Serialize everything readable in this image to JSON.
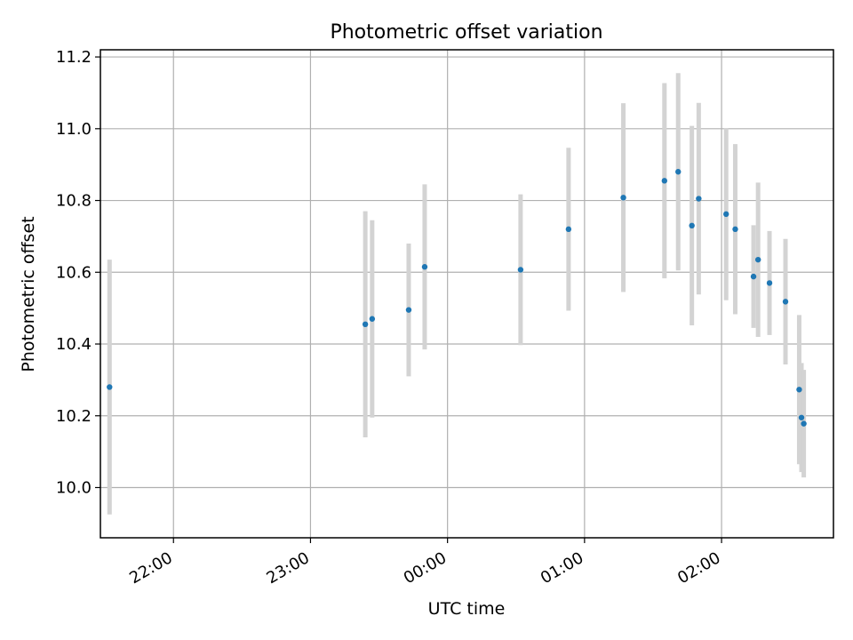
{
  "chart_data": {
    "type": "scatter",
    "title": "Photometric offset variation",
    "xlabel": "UTC time",
    "ylabel": "Photometric offset",
    "grid": true,
    "legend": "none",
    "xaxis_unit": "clock time (HH:MM, UTC)",
    "xlim": [
      "21:28",
      "02:49"
    ],
    "ylim": [
      9.86,
      11.22
    ],
    "xticks": [
      "22:00",
      "23:00",
      "00:00",
      "01:00",
      "02:00"
    ],
    "yticks": [
      10.0,
      10.2,
      10.4,
      10.6,
      10.8,
      11.0,
      11.2
    ],
    "colors": {
      "marker": "#1f77b4",
      "errorbar": "#d3d3d3",
      "grid": "#b0b0b0"
    },
    "series": [
      {
        "points": [
          {
            "x": "21:32",
            "y": 10.28,
            "yerr": 0.355
          },
          {
            "x": "23:24",
            "y": 10.455,
            "yerr": 0.315
          },
          {
            "x": "23:27",
            "y": 10.47,
            "yerr": 0.275
          },
          {
            "x": "23:43",
            "y": 10.495,
            "yerr": 0.185
          },
          {
            "x": "23:50",
            "y": 10.615,
            "yerr": 0.23
          },
          {
            "x": "00:32",
            "y": 10.607,
            "yerr": 0.21
          },
          {
            "x": "00:53",
            "y": 10.72,
            "yerr": 0.227
          },
          {
            "x": "01:17",
            "y": 10.808,
            "yerr": 0.263
          },
          {
            "x": "01:35",
            "y": 10.855,
            "yerr": 0.272
          },
          {
            "x": "01:41",
            "y": 10.88,
            "yerr": 0.275
          },
          {
            "x": "01:47",
            "y": 10.73,
            "yerr": 0.278
          },
          {
            "x": "01:50",
            "y": 10.805,
            "yerr": 0.267
          },
          {
            "x": "02:02",
            "y": 10.762,
            "yerr": 0.24
          },
          {
            "x": "02:06",
            "y": 10.72,
            "yerr": 0.237
          },
          {
            "x": "02:14",
            "y": 10.588,
            "yerr": 0.143
          },
          {
            "x": "02:16",
            "y": 10.635,
            "yerr": 0.215
          },
          {
            "x": "02:21",
            "y": 10.57,
            "yerr": 0.145
          },
          {
            "x": "02:28",
            "y": 10.518,
            "yerr": 0.175
          },
          {
            "x": "02:34",
            "y": 10.273,
            "yerr": 0.208
          },
          {
            "x": "02:35",
            "y": 10.195,
            "yerr": 0.152
          },
          {
            "x": "02:36",
            "y": 10.178,
            "yerr": 0.15
          }
        ]
      }
    ]
  }
}
